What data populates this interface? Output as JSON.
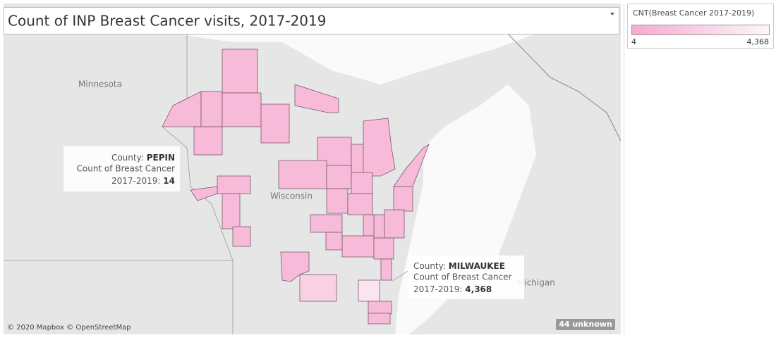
{
  "header": {
    "title": "Count of INP Breast Cancer visits, 2017-2019"
  },
  "legend": {
    "title": "CNT(Breast Cancer 2017-2019)",
    "min": "4",
    "max": "4,368"
  },
  "map": {
    "labels": [
      "Minnesota",
      "Wisconsin",
      "Michigan"
    ],
    "attribution": "© 2020 Mapbox © OpenStreetMap",
    "unknown": "44 unknown"
  },
  "tooltips": [
    {
      "county_label": "County:",
      "county": "PEPIN",
      "measure": "Count of Breast Cancer",
      "period": "2017-2019:",
      "value": "14"
    },
    {
      "county_label": "County:",
      "county": "MILWAUKEE",
      "measure": "Count of Breast Cancer",
      "period": "2017-2019:",
      "value": "4,368"
    }
  ]
}
